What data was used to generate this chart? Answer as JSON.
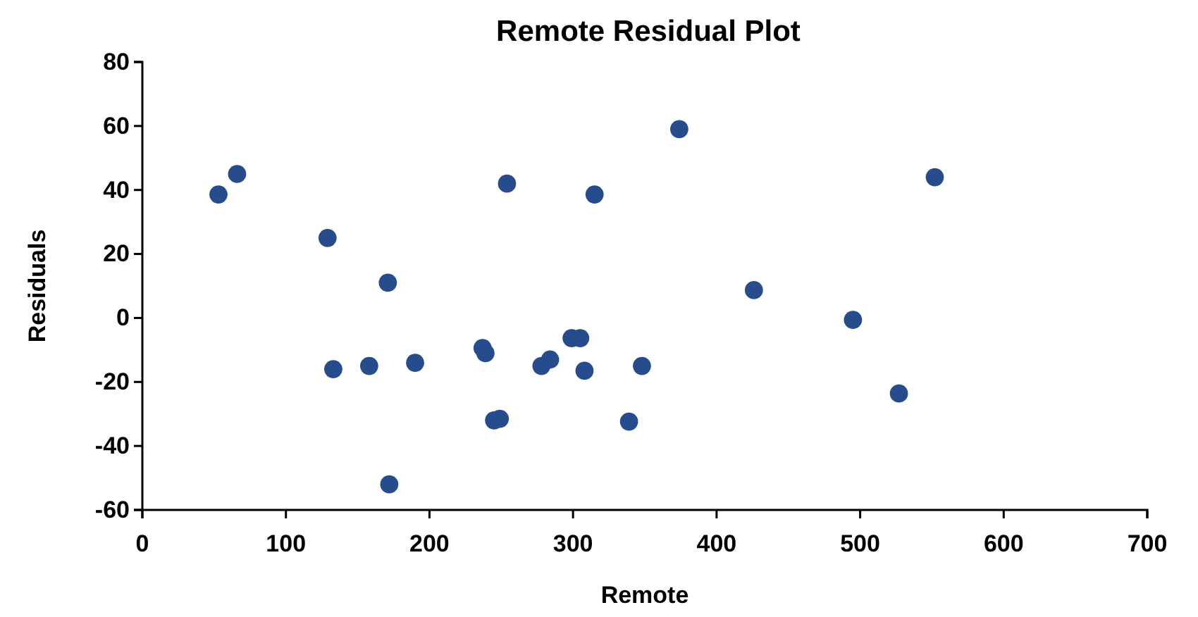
{
  "chart_data": {
    "type": "scatter",
    "title": "Remote Residual Plot",
    "xlabel": "Remote",
    "ylabel": "Residuals",
    "xlim": [
      0,
      700
    ],
    "xticks": [
      0,
      100,
      200,
      300,
      400,
      500,
      600,
      700
    ],
    "ylim": [
      -60,
      80
    ],
    "yticks": [
      -60,
      -40,
      -20,
      0,
      20,
      40,
      60,
      80
    ],
    "grid": false,
    "marker": "circle",
    "series": [
      {
        "color": "#264c8c",
        "x": [
          53,
          66,
          129,
          133,
          158,
          171,
          172,
          190,
          237,
          239,
          245,
          249,
          254,
          278,
          284,
          299,
          305,
          308,
          315,
          339,
          348,
          374,
          426,
          495,
          527,
          552
        ],
        "values": [
          38.6,
          45,
          25,
          -16,
          -15,
          11,
          -52,
          -14,
          -9.4,
          -11,
          -32,
          -31.5,
          42,
          -15,
          -13,
          -6.3,
          -6.3,
          -16.5,
          38.6,
          -32.4,
          -15,
          59,
          8.7,
          -0.6,
          -23.6,
          44
        ]
      }
    ]
  }
}
